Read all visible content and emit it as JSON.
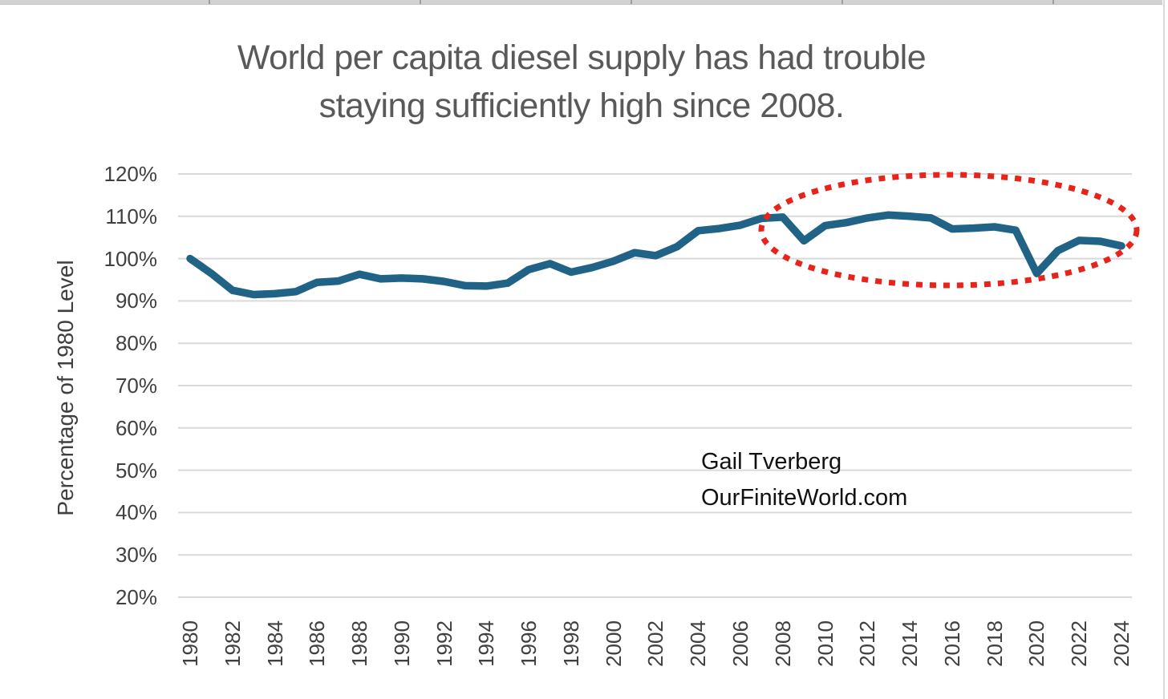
{
  "title": {
    "line1": "World per capita diesel supply has had trouble",
    "line2": "staying sufficiently high since 2008."
  },
  "attribution": {
    "line1": "Gail Tverberg",
    "line2": "OurFiniteWorld.com"
  },
  "chart_data": {
    "type": "line",
    "title": "World per capita diesel supply has had trouble staying sufficiently high since 2008.",
    "xlabel": "",
    "ylabel": "Percentage of 1980 Level",
    "x": [
      1980,
      1981,
      1982,
      1983,
      1984,
      1985,
      1986,
      1987,
      1988,
      1989,
      1990,
      1991,
      1992,
      1993,
      1994,
      1995,
      1996,
      1997,
      1998,
      1999,
      2000,
      2001,
      2002,
      2003,
      2004,
      2005,
      2006,
      2007,
      2008,
      2009,
      2010,
      2011,
      2012,
      2013,
      2014,
      2015,
      2016,
      2017,
      2018,
      2019,
      2020,
      2021,
      2022,
      2023,
      2024
    ],
    "series": [
      {
        "name": "World per capita diesel supply, percentage of 1980 level",
        "values": [
          100,
          96.5,
          92.5,
          91.5,
          91.7,
          92.2,
          94.4,
          94.7,
          96.3,
          95.2,
          95.4,
          95.2,
          94.6,
          93.6,
          93.5,
          94.2,
          97.4,
          98.8,
          96.8,
          97.9,
          99.4,
          101.4,
          100.7,
          102.8,
          106.6,
          107.1,
          107.9,
          109.5,
          109.8,
          104.2,
          107.8,
          108.5,
          109.6,
          110.3,
          110.0,
          109.6,
          107.0,
          107.2,
          107.5,
          106.7,
          96.5,
          101.9,
          104.3,
          104.1,
          103.0
        ]
      }
    ],
    "ylim": [
      20,
      120
    ],
    "yticks": [
      "120%",
      "110%",
      "100%",
      "90%",
      "80%",
      "70%",
      "60%",
      "50%",
      "40%",
      "30%",
      "20%"
    ],
    "xticks": [
      1980,
      1982,
      1984,
      1986,
      1988,
      1990,
      1992,
      1994,
      1996,
      1998,
      2000,
      2002,
      2004,
      2006,
      2008,
      2010,
      2012,
      2014,
      2016,
      2018,
      2020,
      2022,
      2024
    ],
    "grid": true,
    "legend": "none",
    "line_color": "#206387",
    "gridline_color": "#d9d9d9",
    "annotation": {
      "type": "dotted-ellipse",
      "color": "#e8231a",
      "covers_years": "2008-2024",
      "meaning": "highlights the period since 2008 when supply had trouble staying high"
    }
  }
}
